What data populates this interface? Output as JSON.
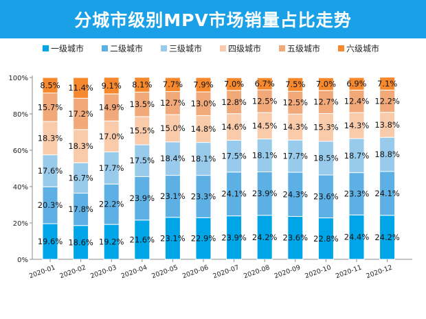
{
  "chart_data": {
    "type": "bar",
    "stacked": true,
    "title": "分城市级别MPV市场销量占比走势",
    "categories": [
      "2020-01",
      "2020-02",
      "2020-03",
      "2020-04",
      "2020-05",
      "2020-06",
      "2020-07",
      "2020-08",
      "2020-09",
      "2020-10",
      "2020-11",
      "2020-12"
    ],
    "series": [
      {
        "name": "一级城市",
        "color": "#00a5e8",
        "values": [
          19.6,
          18.6,
          19.2,
          21.6,
          23.1,
          22.9,
          23.9,
          24.2,
          23.6,
          22.8,
          24.4,
          24.2
        ]
      },
      {
        "name": "二级城市",
        "color": "#5db0e4",
        "values": [
          20.3,
          17.8,
          22.2,
          23.9,
          23.1,
          23.3,
          24.1,
          23.9,
          24.3,
          23.6,
          23.3,
          24.1
        ]
      },
      {
        "name": "三级城市",
        "color": "#98cbeb",
        "values": [
          17.6,
          16.7,
          17.7,
          17.5,
          18.4,
          18.1,
          17.5,
          18.1,
          17.7,
          18.5,
          18.7,
          18.8
        ]
      },
      {
        "name": "四级城市",
        "color": "#f9cbab",
        "values": [
          18.3,
          18.3,
          17.0,
          15.5,
          15.0,
          14.8,
          14.6,
          14.5,
          14.3,
          15.3,
          14.3,
          13.8
        ]
      },
      {
        "name": "五级城市",
        "color": "#f2a97a",
        "values": [
          15.7,
          17.2,
          14.9,
          13.5,
          12.7,
          13.0,
          12.8,
          12.5,
          12.5,
          12.7,
          12.4,
          12.2
        ]
      },
      {
        "name": "六级城市",
        "color": "#f6882d",
        "values": [
          8.5,
          11.4,
          9.1,
          8.1,
          7.7,
          7.9,
          7.0,
          6.7,
          7.5,
          7.0,
          6.9,
          7.1
        ]
      }
    ],
    "ylim": [
      0,
      100
    ],
    "yticks": [
      "0%",
      "20%",
      "40%",
      "60%",
      "80%",
      "100%"
    ],
    "legend": "top",
    "grid": false,
    "xlabel": "",
    "ylabel": ""
  }
}
